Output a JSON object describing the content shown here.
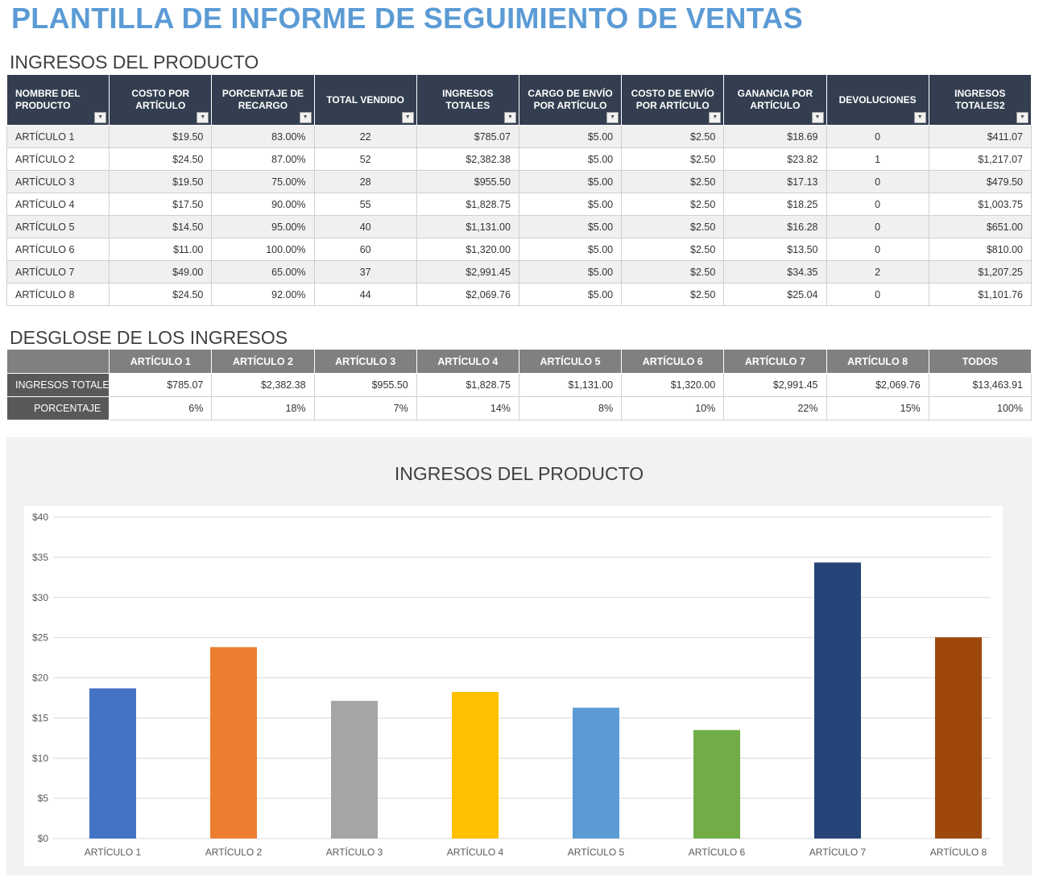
{
  "title": "PLANTILLA DE INFORME DE SEGUIMIENTO DE VENTAS",
  "product_section": {
    "title": "INGRESOS DEL PRODUCTO",
    "headers": [
      "NOMBRE DEL PRODUCTO",
      "COSTO POR ARTÍCULO",
      "PORCENTAJE DE RECARGO",
      "TOTAL VENDIDO",
      "INGRESOS TOTALES",
      "CARGO DE ENVÍO POR ARTÍCULO",
      "COSTO DE ENVÍO POR ARTÍCULO",
      "GANANCIA POR ARTÍCULO",
      "DEVOLUCIONES",
      "INGRESOS TOTALES2"
    ],
    "rows": [
      [
        "ARTÍCULO 1",
        "$19.50",
        "83.00%",
        "22",
        "$785.07",
        "$5.00",
        "$2.50",
        "$18.69",
        "0",
        "$411.07"
      ],
      [
        "ARTÍCULO 2",
        "$24.50",
        "87.00%",
        "52",
        "$2,382.38",
        "$5.00",
        "$2.50",
        "$23.82",
        "1",
        "$1,217.07"
      ],
      [
        "ARTÍCULO 3",
        "$19.50",
        "75.00%",
        "28",
        "$955.50",
        "$5.00",
        "$2.50",
        "$17.13",
        "0",
        "$479.50"
      ],
      [
        "ARTÍCULO 4",
        "$17.50",
        "90.00%",
        "55",
        "$1,828.75",
        "$5.00",
        "$2.50",
        "$18.25",
        "0",
        "$1,003.75"
      ],
      [
        "ARTÍCULO 5",
        "$14.50",
        "95.00%",
        "40",
        "$1,131.00",
        "$5.00",
        "$2.50",
        "$16.28",
        "0",
        "$651.00"
      ],
      [
        "ARTÍCULO 6",
        "$11.00",
        "100.00%",
        "60",
        "$1,320.00",
        "$5.00",
        "$2.50",
        "$13.50",
        "0",
        "$810.00"
      ],
      [
        "ARTÍCULO 7",
        "$49.00",
        "65.00%",
        "37",
        "$2,991.45",
        "$5.00",
        "$2.50",
        "$34.35",
        "2",
        "$1,207.25"
      ],
      [
        "ARTÍCULO 8",
        "$24.50",
        "92.00%",
        "44",
        "$2,069.76",
        "$5.00",
        "$2.50",
        "$25.04",
        "0",
        "$1,101.76"
      ]
    ]
  },
  "breakdown": {
    "title": "DESGLOSE DE LOS INGRESOS",
    "headers": [
      "",
      "ARTÍCULO 1",
      "ARTÍCULO 2",
      "ARTÍCULO 3",
      "ARTÍCULO 4",
      "ARTÍCULO 5",
      "ARTÍCULO 6",
      "ARTÍCULO 7",
      "ARTÍCULO 8",
      "TODOS"
    ],
    "rows": [
      [
        "INGRESOS TOTALES",
        "$785.07",
        "$2,382.38",
        "$955.50",
        "$1,828.75",
        "$1,131.00",
        "$1,320.00",
        "$2,991.45",
        "$2,069.76",
        "$13,463.91"
      ],
      [
        "PORCENTAJE",
        "6%",
        "18%",
        "7%",
        "14%",
        "8%",
        "10%",
        "22%",
        "15%",
        "100%"
      ]
    ]
  },
  "chart_data": {
    "type": "bar",
    "title": "INGRESOS DEL PRODUCTO",
    "categories": [
      "ARTÍCULO 1",
      "ARTÍCULO 2",
      "ARTÍCULO 3",
      "ARTÍCULO 4",
      "ARTÍCULO 5",
      "ARTÍCULO 6",
      "ARTÍCULO 7",
      "ARTÍCULO 8"
    ],
    "values": [
      18.69,
      23.82,
      17.13,
      18.25,
      16.28,
      13.5,
      34.35,
      25.04
    ],
    "colors": [
      "#4472c4",
      "#ed7d31",
      "#a5a5a5",
      "#ffc000",
      "#5b9bd5",
      "#70ad47",
      "#264478",
      "#9e480e"
    ],
    "yticks": [
      "$0",
      "$5",
      "$10",
      "$15",
      "$20",
      "$25",
      "$30",
      "$35",
      "$40"
    ],
    "ylim": [
      0,
      40
    ],
    "grid": true,
    "legend": "none"
  }
}
